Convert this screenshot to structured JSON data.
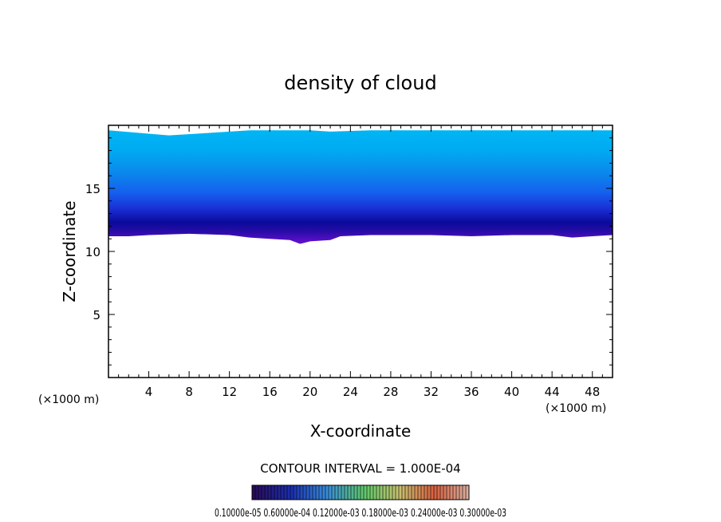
{
  "chart_data": {
    "type": "contour",
    "title": "density of cloud",
    "xlabel": "X-coordinate",
    "ylabel": "Z-coordinate",
    "x_unit_left": "(×1000 m)",
    "x_unit_right": "(×1000 m)",
    "xlim": [
      0,
      50
    ],
    "ylim": [
      0,
      20
    ],
    "x_ticks": [
      4,
      8,
      12,
      16,
      20,
      24,
      28,
      32,
      36,
      40,
      44,
      48
    ],
    "y_ticks": [
      5,
      10,
      15
    ],
    "grid": false,
    "contour_interval_text": "CONTOUR INTERVAL = 1.000E-04",
    "colorbar_labels_text": "0.10000e-05  0.60000e-04  0.12000e-03  0.18000e-03  0.24000e-03  0.30000e-03",
    "colors": {
      "top_fill": "#00b8f5",
      "mid_fill": "#1560ee",
      "deep_fill": "#0a0a9a",
      "base_fill": "#5a0fc8"
    },
    "cloud_top": {
      "x": [
        0,
        6,
        10,
        14,
        18,
        20,
        22,
        26,
        28,
        30,
        32,
        36,
        40,
        44,
        48,
        50
      ],
      "z": [
        19.6,
        19.2,
        19.4,
        19.6,
        19.6,
        19.6,
        19.5,
        19.6,
        19.6,
        19.6,
        19.6,
        19.6,
        19.6,
        19.6,
        19.6,
        19.6
      ]
    },
    "cloud_base": {
      "x": [
        0,
        2,
        4,
        8,
        12,
        14,
        16,
        18,
        19,
        20,
        22,
        23,
        26,
        30,
        32,
        36,
        40,
        44,
        46,
        48,
        50
      ],
      "z": [
        11.2,
        11.2,
        11.3,
        11.4,
        11.3,
        11.1,
        11.0,
        10.9,
        10.6,
        10.8,
        10.9,
        11.2,
        11.3,
        11.3,
        11.3,
        11.2,
        11.3,
        11.3,
        11.1,
        11.2,
        11.3
      ]
    }
  }
}
